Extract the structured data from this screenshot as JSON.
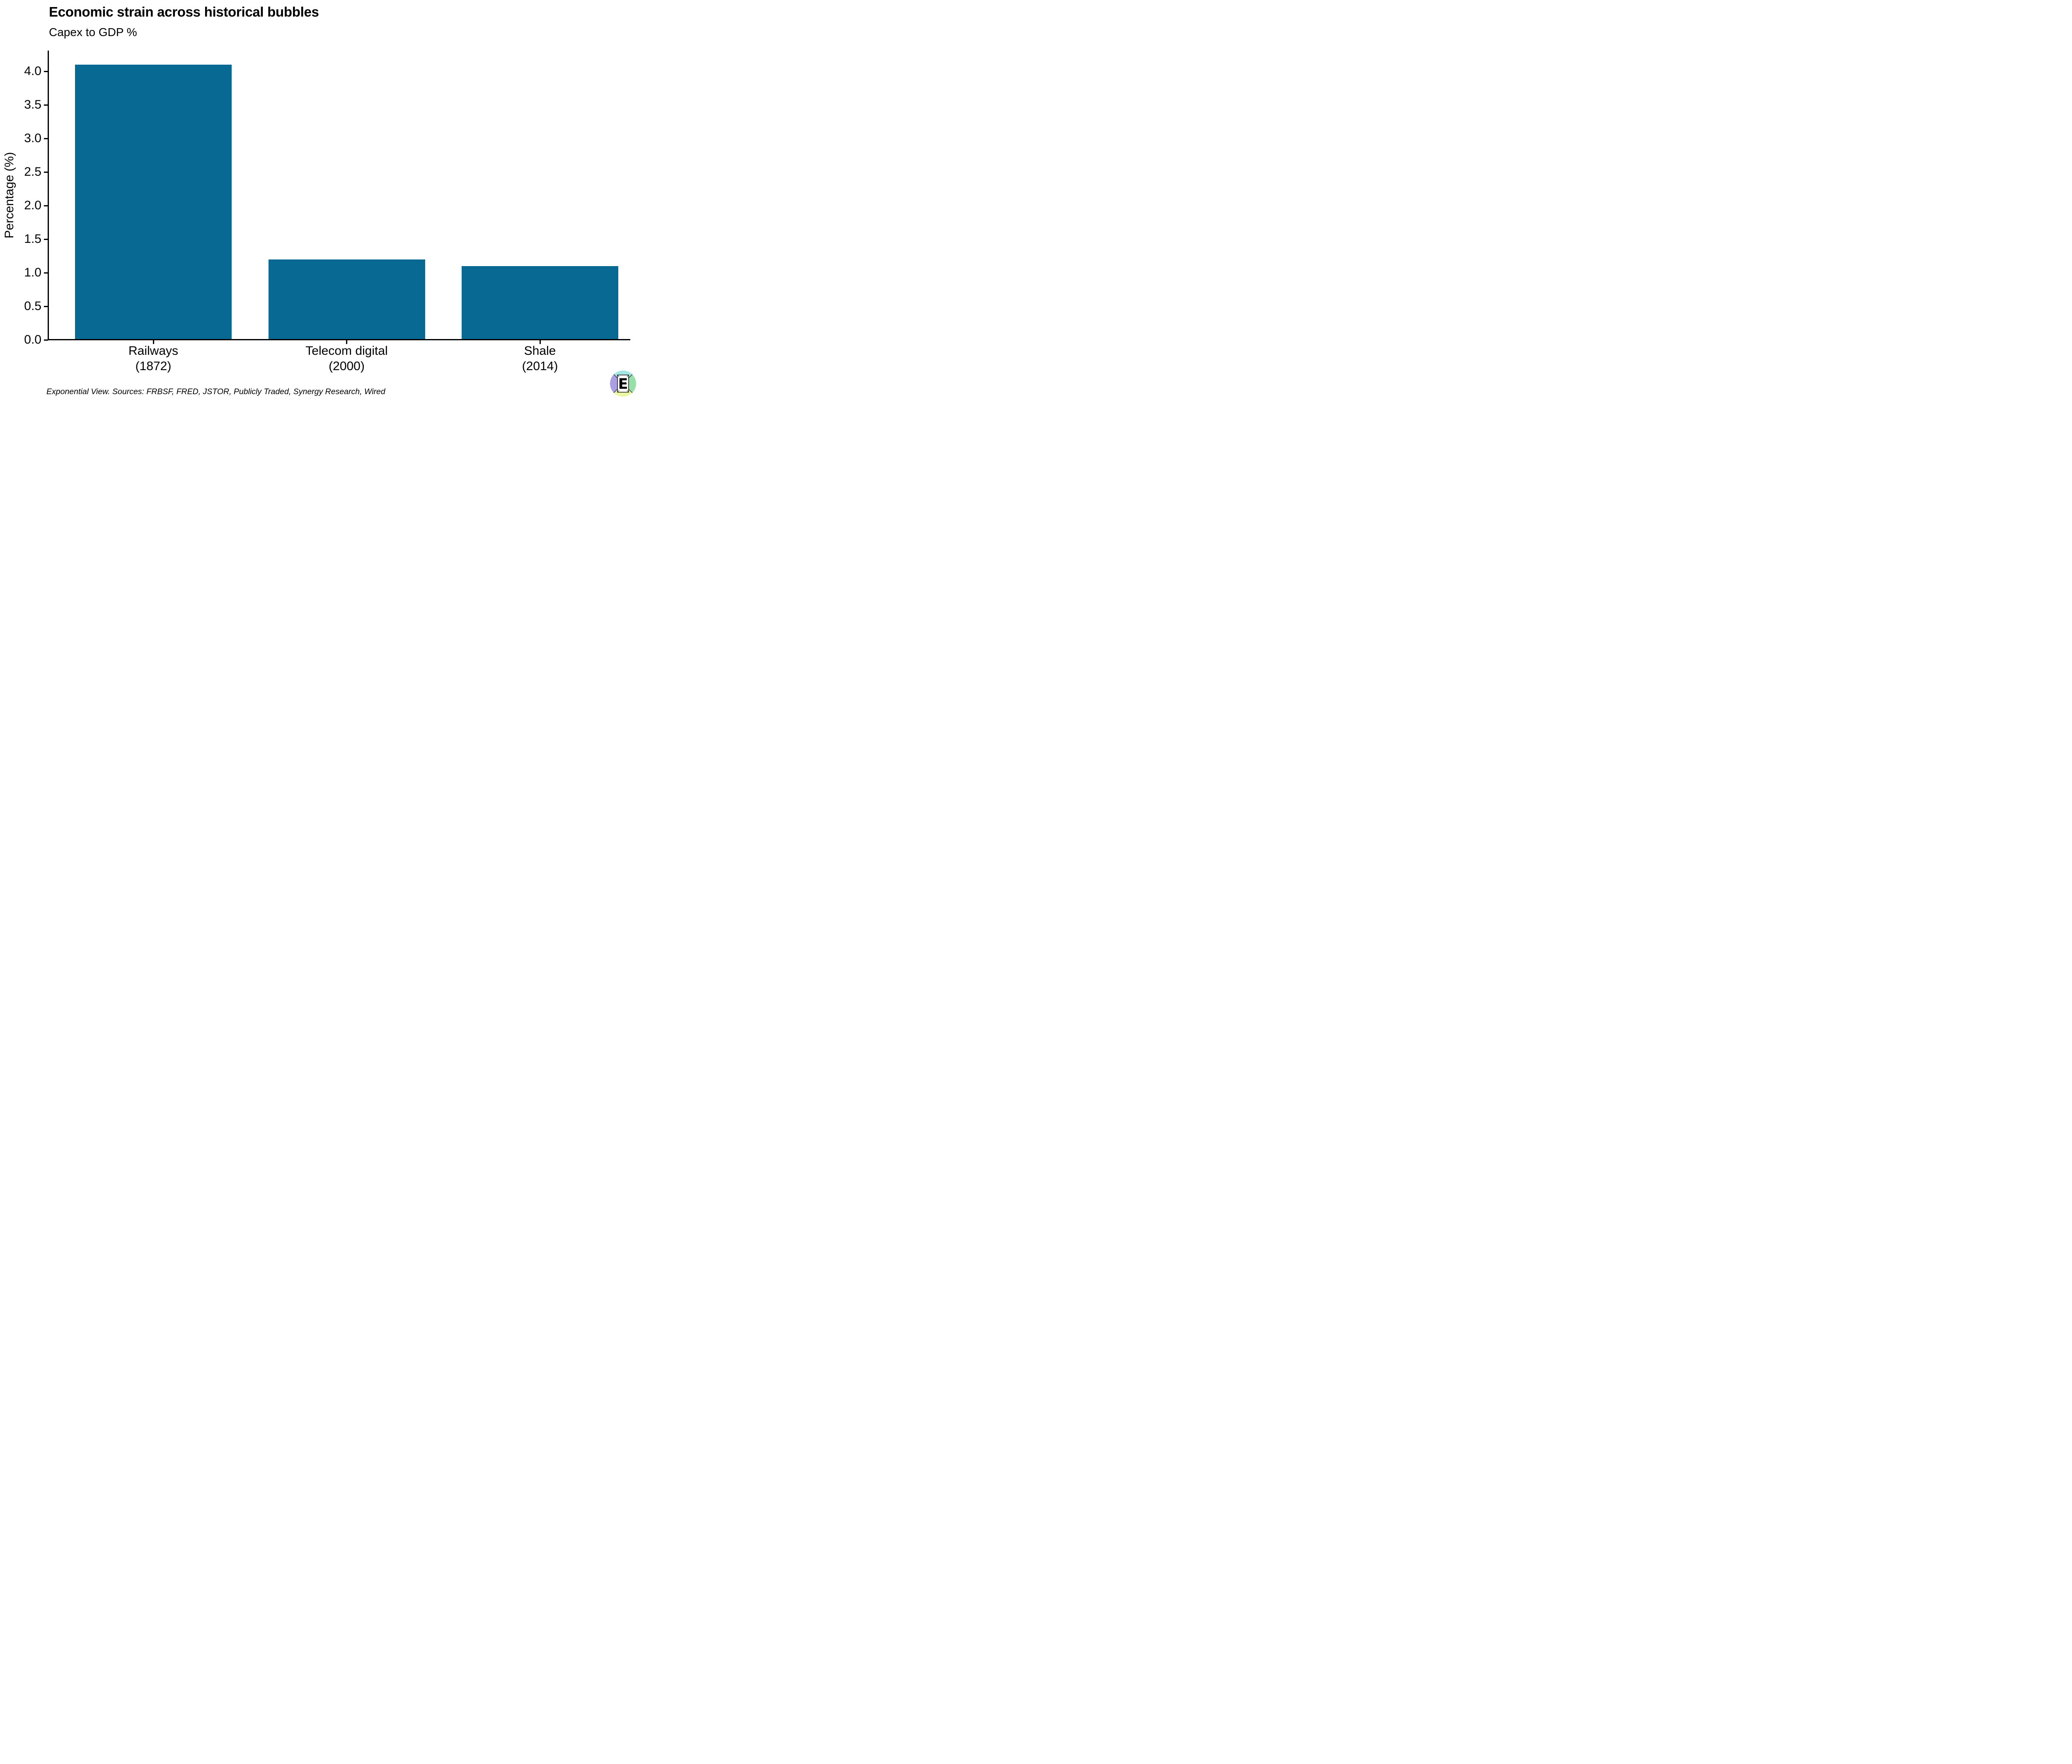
{
  "header": {
    "title": "Economic strain across historical bubbles",
    "subtitle": "Capex to GDP %"
  },
  "chart_data": {
    "type": "bar",
    "title": "Economic strain across historical bubbles",
    "subtitle": "Capex to GDP %",
    "categories": [
      "Railways (1872)",
      "Telecom digital (2000)",
      "Shale (2014)"
    ],
    "category_lines": [
      [
        "Railways",
        "(1872)"
      ],
      [
        "Telecom digital",
        "(2000)"
      ],
      [
        "Shale",
        "(2014)"
      ]
    ],
    "values": [
      4.1,
      1.2,
      1.1
    ],
    "xlabel": "",
    "ylabel": "Percentage (%)",
    "ylim": [
      0.0,
      4.31
    ],
    "yticks": [
      "0.0",
      "0.5",
      "1.0",
      "1.5",
      "2.0",
      "2.5",
      "3.0",
      "3.5",
      "4.0"
    ],
    "bar_color": "#086a93",
    "axis_color": "#000000",
    "grid": false,
    "legend_position": "none"
  },
  "footer": {
    "source_text": "Exponential View. Sources: FRBSF, FRED, JSTOR, Publicly Traded, Synergy Research, Wired"
  },
  "logo": {
    "letter": "E",
    "colors": {
      "top": "#a4e6e2",
      "right": "#99dfa9",
      "bottom": "#ecf7a3",
      "left": "#ab9fe4"
    }
  }
}
